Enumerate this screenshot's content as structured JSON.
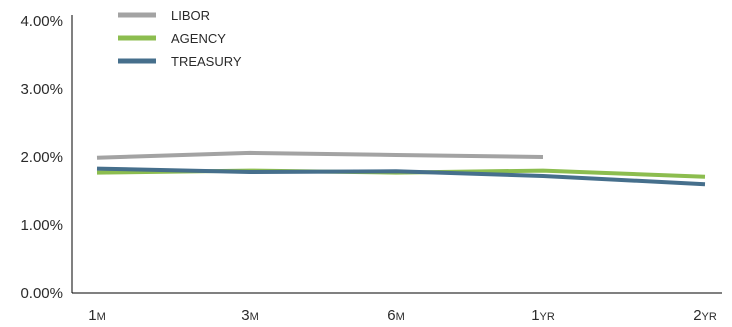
{
  "chart_data": {
    "type": "line",
    "title": "",
    "xlabel": "",
    "ylabel": "",
    "categories": [
      "1M",
      "3M",
      "6M",
      "1YR",
      "2YR"
    ],
    "category_labels": [
      {
        "num": "1",
        "unit": "M"
      },
      {
        "num": "3",
        "unit": "M"
      },
      {
        "num": "6",
        "unit": "M"
      },
      {
        "num": "1",
        "unit": "YR"
      },
      {
        "num": "2",
        "unit": "YR"
      }
    ],
    "ylim": [
      0,
      4
    ],
    "yticks": [
      0,
      1,
      2,
      3,
      4
    ],
    "ytick_labels": [
      "0.00%",
      "1.00%",
      "2.00%",
      "3.00%",
      "4.00%"
    ],
    "grid": false,
    "legend_position": "top-left",
    "series": [
      {
        "name": "LIBOR",
        "color": "#a3a3a3",
        "values": [
          1.99,
          2.06,
          2.03,
          2.0,
          null
        ]
      },
      {
        "name": "AGENCY",
        "color": "#8cbd4f",
        "values": [
          1.77,
          1.8,
          1.77,
          1.8,
          1.71
        ]
      },
      {
        "name": "TREASURY",
        "color": "#466f8c",
        "values": [
          1.83,
          1.78,
          1.79,
          1.72,
          1.6
        ]
      }
    ]
  }
}
